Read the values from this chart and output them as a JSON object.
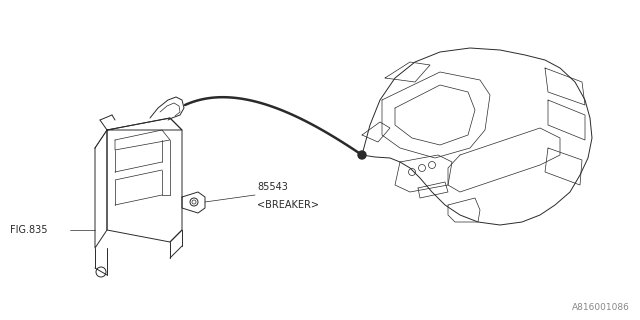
{
  "background_color": "#ffffff",
  "line_color": "#2a2a2a",
  "text_color": "#2a2a2a",
  "fig_width": 6.4,
  "fig_height": 3.2,
  "dpi": 100,
  "watermark_text": "A816001086",
  "label_85543": "85543",
  "label_breaker": "<BREAKER>",
  "label_fig835": "FIG.835",
  "lw_main": 0.7,
  "lw_inner": 0.5
}
